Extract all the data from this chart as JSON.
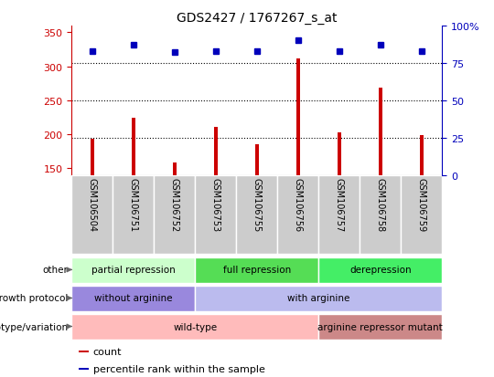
{
  "title": "GDS2427 / 1767267_s_at",
  "samples": [
    "GSM106504",
    "GSM106751",
    "GSM106752",
    "GSM106753",
    "GSM106755",
    "GSM106756",
    "GSM106757",
    "GSM106758",
    "GSM106759"
  ],
  "counts": [
    193,
    224,
    158,
    210,
    185,
    312,
    203,
    268,
    198
  ],
  "percentile_ranks": [
    83,
    87,
    82,
    83,
    83,
    90,
    83,
    87,
    83
  ],
  "ylim_left": [
    140,
    360
  ],
  "ylim_right": [
    0,
    100
  ],
  "yticks_left": [
    150,
    200,
    250,
    300,
    350
  ],
  "yticks_right": [
    0,
    25,
    50,
    75,
    100
  ],
  "bar_color": "#cc0000",
  "dot_color": "#0000bb",
  "grid_color": "#000000",
  "tick_color_left": "#cc0000",
  "tick_color_right": "#0000bb",
  "annotation_rows": [
    {
      "label": "other",
      "segments": [
        {
          "text": "partial repression",
          "start": 0,
          "end": 3,
          "color": "#ccffcc"
        },
        {
          "text": "full repression",
          "start": 3,
          "end": 6,
          "color": "#55dd55"
        },
        {
          "text": "derepression",
          "start": 6,
          "end": 9,
          "color": "#44ee66"
        }
      ]
    },
    {
      "label": "growth protocol",
      "segments": [
        {
          "text": "without arginine",
          "start": 0,
          "end": 3,
          "color": "#9988dd"
        },
        {
          "text": "with arginine",
          "start": 3,
          "end": 9,
          "color": "#bbbbee"
        }
      ]
    },
    {
      "label": "genotype/variation",
      "segments": [
        {
          "text": "wild-type",
          "start": 0,
          "end": 6,
          "color": "#ffbbbb"
        },
        {
          "text": "arginine repressor mutant",
          "start": 6,
          "end": 9,
          "color": "#cc8888"
        }
      ]
    }
  ],
  "legend_items": [
    {
      "color": "#cc0000",
      "label": "count"
    },
    {
      "color": "#0000bb",
      "label": "percentile rank within the sample"
    }
  ],
  "fig_width": 5.4,
  "fig_height": 4.14,
  "dpi": 100
}
